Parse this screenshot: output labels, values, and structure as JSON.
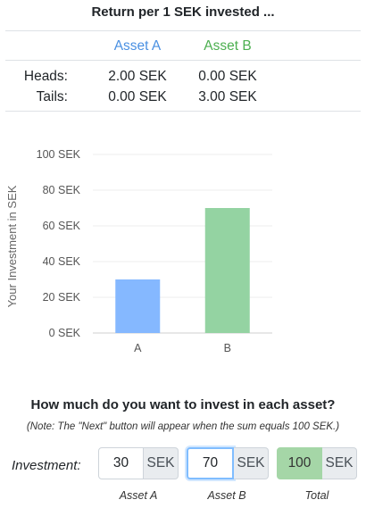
{
  "header": {
    "title": "Return per 1 SEK invested ..."
  },
  "returns_table": {
    "columns": [
      "Asset A",
      "Asset B"
    ],
    "column_colors": [
      "#4a90e2",
      "#4caf50"
    ],
    "rows": [
      {
        "label": "Heads:",
        "values": [
          "2.00 SEK",
          "0.00 SEK"
        ]
      },
      {
        "label": "Tails:",
        "values": [
          "0.00 SEK",
          "3.00 SEK"
        ]
      }
    ]
  },
  "chart_data": {
    "type": "bar",
    "categories": [
      "A",
      "B"
    ],
    "values": [
      30,
      70
    ],
    "colors": [
      "#85b8ff",
      "#94d3a2"
    ],
    "ylabel": "Your Investment in SEK",
    "ylim": [
      0,
      100
    ],
    "yticks": [
      {
        "value": 0,
        "label": "0 SEK"
      },
      {
        "value": 20,
        "label": "20 SEK"
      },
      {
        "value": 40,
        "label": "40 SEK"
      },
      {
        "value": 60,
        "label": "60 SEK"
      },
      {
        "value": 80,
        "label": "80 SEK"
      },
      {
        "value": 100,
        "label": "100 SEK"
      }
    ],
    "grid": true
  },
  "investment": {
    "question": "How much do you want to invest in each asset?",
    "note": "(Note: The \"Next\" button will appear when the sum equals 100 SEK.)",
    "label": "Investment:",
    "unit": "SEK",
    "asset_a": {
      "value": "30",
      "caption": "Asset A"
    },
    "asset_b": {
      "value": "70",
      "caption": "Asset B"
    },
    "total": {
      "value": "100",
      "caption": "Total"
    }
  }
}
